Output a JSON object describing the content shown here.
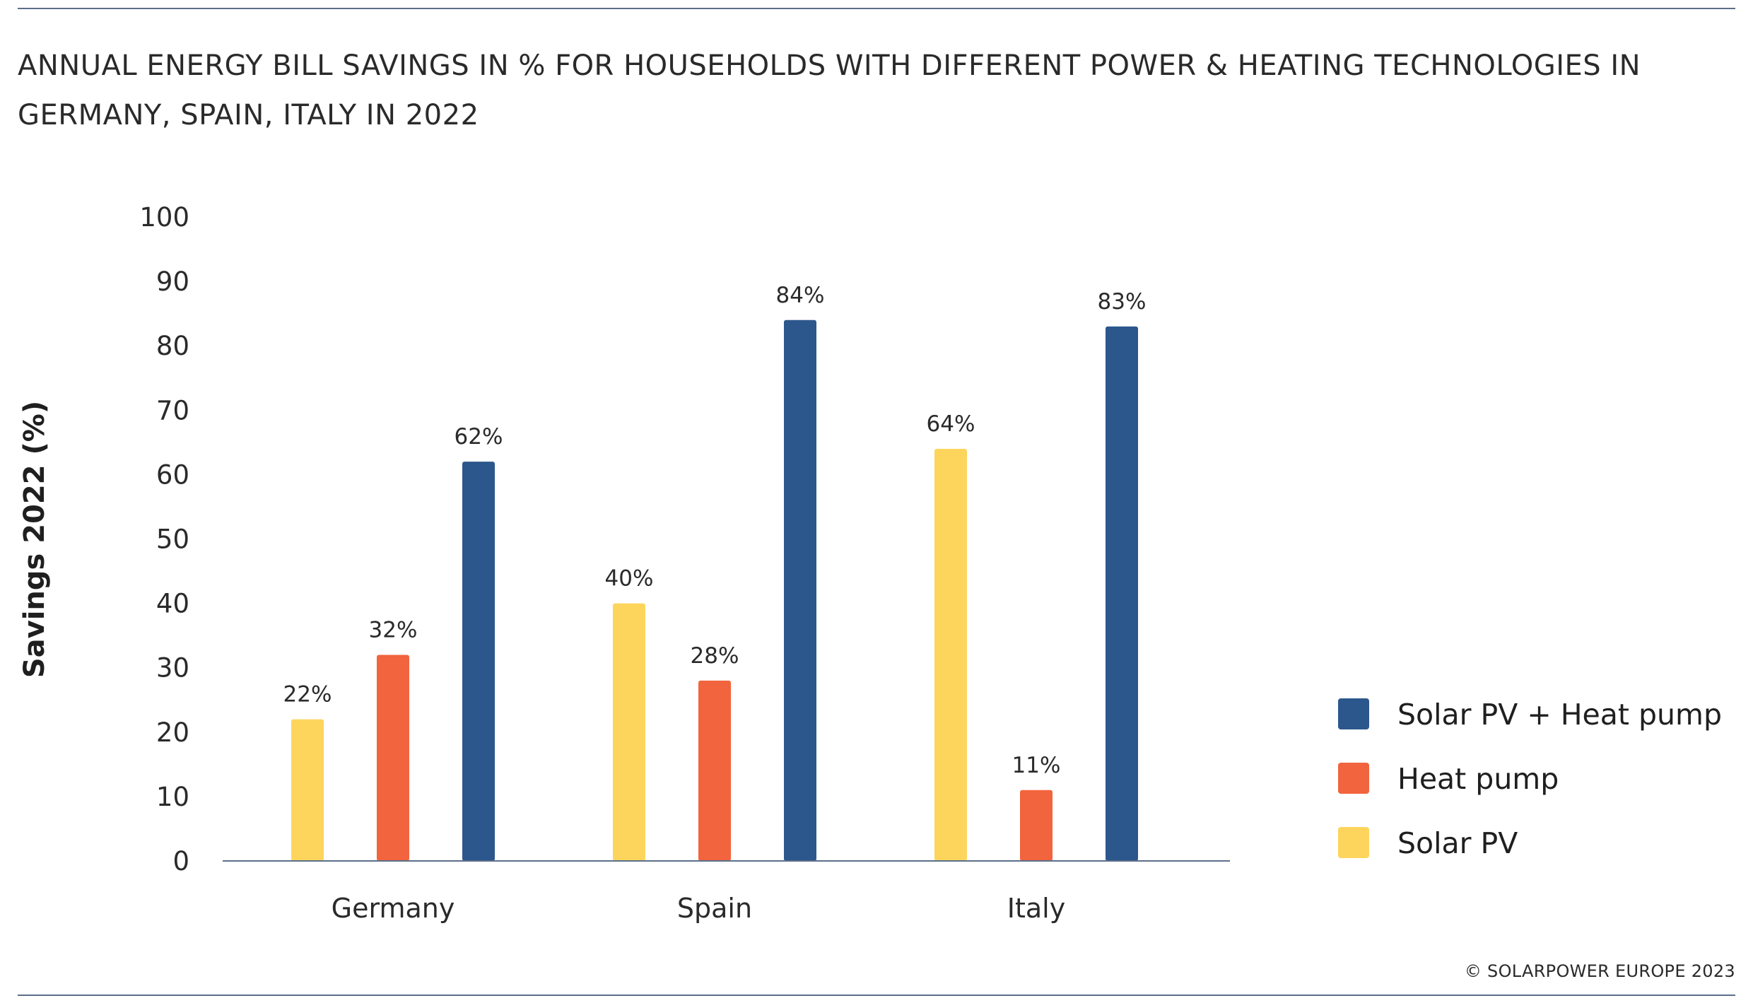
{
  "title": "ANNUAL ENERGY BILL SAVINGS IN % FOR HOUSEHOLDS WITH DIFFERENT POWER & HEATING TECHNOLOGIES IN GERMANY, SPAIN, ITALY IN 2022",
  "copyright": "© SOLARPOWER EUROPE 2023",
  "chart_data": {
    "type": "bar",
    "title": "ANNUAL ENERGY BILL SAVINGS IN % FOR HOUSEHOLDS WITH DIFFERENT POWER & HEATING TECHNOLOGIES IN GERMANY, SPAIN, ITALY IN 2022",
    "xlabel": "",
    "ylabel": "Savings 2022 (%)",
    "ylim": [
      0,
      100
    ],
    "yticks": [
      0,
      10,
      20,
      30,
      40,
      50,
      60,
      70,
      80,
      90,
      100
    ],
    "grid": false,
    "legend_position": "right",
    "categories": [
      "Germany",
      "Spain",
      "Italy"
    ],
    "series": [
      {
        "name": "Solar PV",
        "color": "#FDD55C",
        "values": [
          22,
          40,
          64
        ],
        "labels": [
          "22%",
          "40%",
          "64%"
        ]
      },
      {
        "name": "Heat pump",
        "color": "#F2643D",
        "values": [
          32,
          28,
          11
        ],
        "labels": [
          "32%",
          "28%",
          "11%"
        ]
      },
      {
        "name": "Solar PV + Heat pump",
        "color": "#2C578C",
        "values": [
          62,
          84,
          83
        ],
        "labels": [
          "62%",
          "84%",
          "83%"
        ]
      }
    ],
    "legend_order": [
      "Solar PV + Heat pump",
      "Heat pump",
      "Solar PV"
    ]
  }
}
